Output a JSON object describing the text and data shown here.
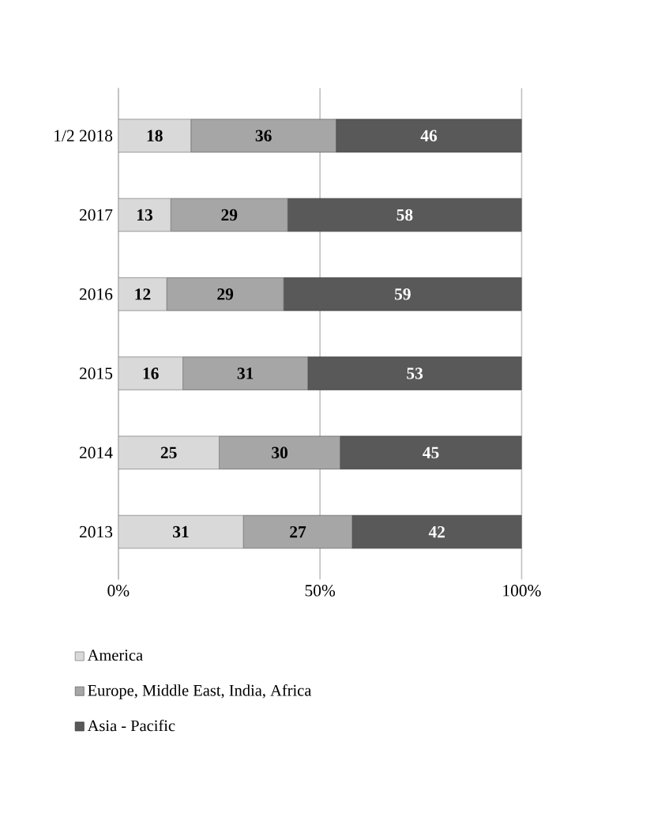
{
  "chart_data": {
    "type": "bar",
    "orientation": "horizontal",
    "stacked": true,
    "categories": [
      "1/2 2018",
      "2017",
      "2016",
      "2015",
      "2014",
      "2013"
    ],
    "series": [
      {
        "name": "America",
        "color": "#d9d9d9",
        "values": [
          18,
          13,
          12,
          16,
          25,
          31
        ]
      },
      {
        "name": "Europe, Middle East, India, Africa",
        "color": "#a6a6a6",
        "values": [
          36,
          29,
          29,
          31,
          30,
          27
        ]
      },
      {
        "name": "Asia - Pacific",
        "color": "#595959",
        "values": [
          46,
          58,
          59,
          53,
          45,
          42
        ]
      }
    ],
    "xlim": [
      0,
      100
    ],
    "xticks": [
      {
        "value": 0,
        "label": "0%"
      },
      {
        "value": 50,
        "label": "50%"
      },
      {
        "value": 100,
        "label": "100%"
      }
    ],
    "grid": "x",
    "data_labels": true,
    "legend": "bottom"
  }
}
